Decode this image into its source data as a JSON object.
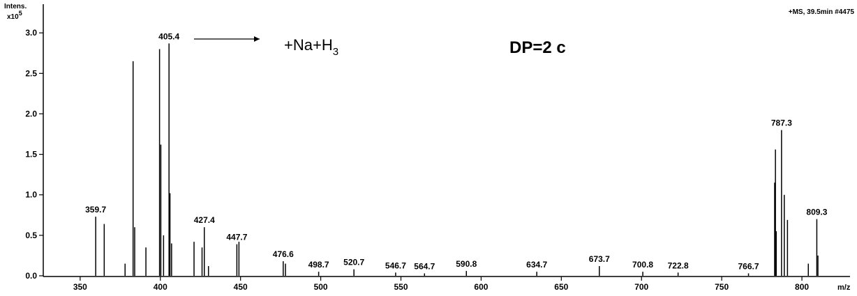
{
  "chart_data": {
    "type": "spectrum",
    "y_label": "Intens.",
    "y_multiplier": "x10",
    "y_multiplier_exponent": "5",
    "x_label": "m/z",
    "scan_info": "+MS, 39.5min #4475",
    "annotation": "+Na+H",
    "annotation_subscript": "3",
    "sample_label": "DP=2 c",
    "color": "#000000",
    "xlim": [
      327,
      830
    ],
    "ylim": [
      0,
      3.32
    ],
    "xticks": [
      350,
      400,
      450,
      500,
      550,
      600,
      650,
      700,
      750,
      800
    ],
    "yticks": [
      {
        "value": 0,
        "label": "0.0"
      },
      0.5,
      {
        "value": 1,
        "label": "1.0"
      },
      1.5,
      {
        "value": 2,
        "label": "2.0"
      },
      2.5,
      {
        "value": 3,
        "label": "3.0"
      }
    ],
    "labeled_peaks": {
      "x": [
        359.7,
        405.4,
        427.4,
        447.7,
        476.6,
        498.7,
        520.7,
        546.7,
        564.7,
        590.8,
        634.7,
        673.7,
        700.8,
        722.8,
        766.7,
        787.3,
        809.3
      ],
      "values": [
        0.73,
        2.87,
        0.6,
        0.39,
        0.18,
        0.05,
        0.08,
        0.04,
        0.03,
        0.06,
        0.05,
        0.12,
        0.05,
        0.04,
        0.03,
        1.8,
        0.7
      ]
    },
    "peaks": {
      "x": [
        365,
        378,
        383,
        384,
        391,
        399.5,
        400.3,
        402,
        406,
        407,
        421,
        426,
        430,
        449,
        478,
        783,
        783.5,
        784,
        789,
        791,
        804,
        810
      ],
      "values": [
        0.64,
        0.15,
        2.65,
        0.6,
        0.35,
        2.8,
        1.62,
        0.5,
        1.02,
        0.4,
        0.42,
        0.35,
        0.12,
        0.42,
        0.15,
        1.15,
        1.56,
        0.55,
        1.0,
        0.69,
        0.15,
        0.25
      ]
    }
  }
}
